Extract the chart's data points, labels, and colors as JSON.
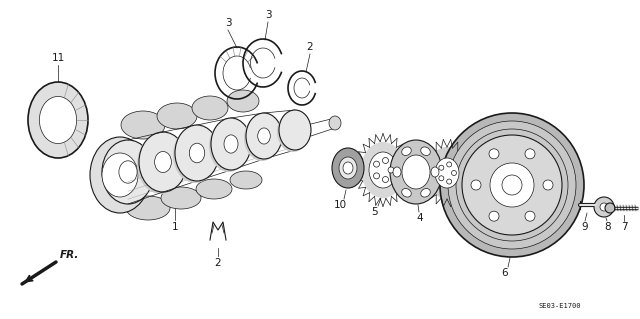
{
  "background_color": "#ffffff",
  "line_color": "#1a1a1a",
  "fig_width": 6.4,
  "fig_height": 3.19,
  "dpi": 100,
  "diagram_code": "SE03-E1700",
  "label_fontsize": 7.5
}
